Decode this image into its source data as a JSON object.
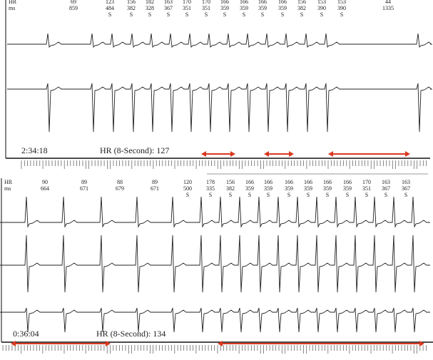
{
  "strips": [
    {
      "hr_label": "HR",
      "ms_label": "ms",
      "time": "2:34:18",
      "heart_rate": "HR (8-Second): 127",
      "beats": [
        {
          "hr": "69",
          "ms": "859"
        },
        {
          "hr": "123",
          "ms": "484",
          "type": "S"
        },
        {
          "hr": "156",
          "ms": "382",
          "type": "S"
        },
        {
          "hr": "182",
          "ms": "328",
          "type": "S"
        },
        {
          "hr": "163",
          "ms": "367",
          "type": "S"
        },
        {
          "hr": "170",
          "ms": "351",
          "type": "S"
        },
        {
          "hr": "170",
          "ms": "351",
          "type": "S"
        },
        {
          "hr": "166",
          "ms": "359",
          "type": "S"
        },
        {
          "hr": "166",
          "ms": "359",
          "type": "S"
        },
        {
          "hr": "166",
          "ms": "359",
          "type": "S"
        },
        {
          "hr": "166",
          "ms": "359",
          "type": "S"
        },
        {
          "hr": "156",
          "ms": "382",
          "type": "S"
        },
        {
          "hr": "153",
          "ms": "390",
          "type": "S"
        },
        {
          "hr": "153",
          "ms": "390",
          "type": "S"
        },
        {
          "hr": "44",
          "ms": "1335"
        }
      ]
    },
    {
      "hr_label": "HR",
      "ms_label": "ms",
      "time": "0:36:04",
      "heart_rate": "HR (8-Second): 134",
      "beats": [
        {
          "hr": "90",
          "ms": "664"
        },
        {
          "hr": "89",
          "ms": "671"
        },
        {
          "hr": "88",
          "ms": "679"
        },
        {
          "hr": "89",
          "ms": "671"
        },
        {
          "hr": "120",
          "ms": "500",
          "type": "S"
        },
        {
          "hr": "178",
          "ms": "335",
          "type": "S"
        },
        {
          "hr": "156",
          "ms": "382",
          "type": "S"
        },
        {
          "hr": "166",
          "ms": "359",
          "type": "S"
        },
        {
          "hr": "166",
          "ms": "359",
          "type": "S"
        },
        {
          "hr": "166",
          "ms": "359",
          "type": "S"
        },
        {
          "hr": "166",
          "ms": "359",
          "type": "S"
        },
        {
          "hr": "166",
          "ms": "359",
          "type": "S"
        },
        {
          "hr": "166",
          "ms": "359",
          "type": "S"
        },
        {
          "hr": "170",
          "ms": "351",
          "type": "S"
        },
        {
          "hr": "163",
          "ms": "367",
          "type": "S"
        },
        {
          "hr": "163",
          "ms": "367",
          "type": "S"
        }
      ]
    }
  ]
}
